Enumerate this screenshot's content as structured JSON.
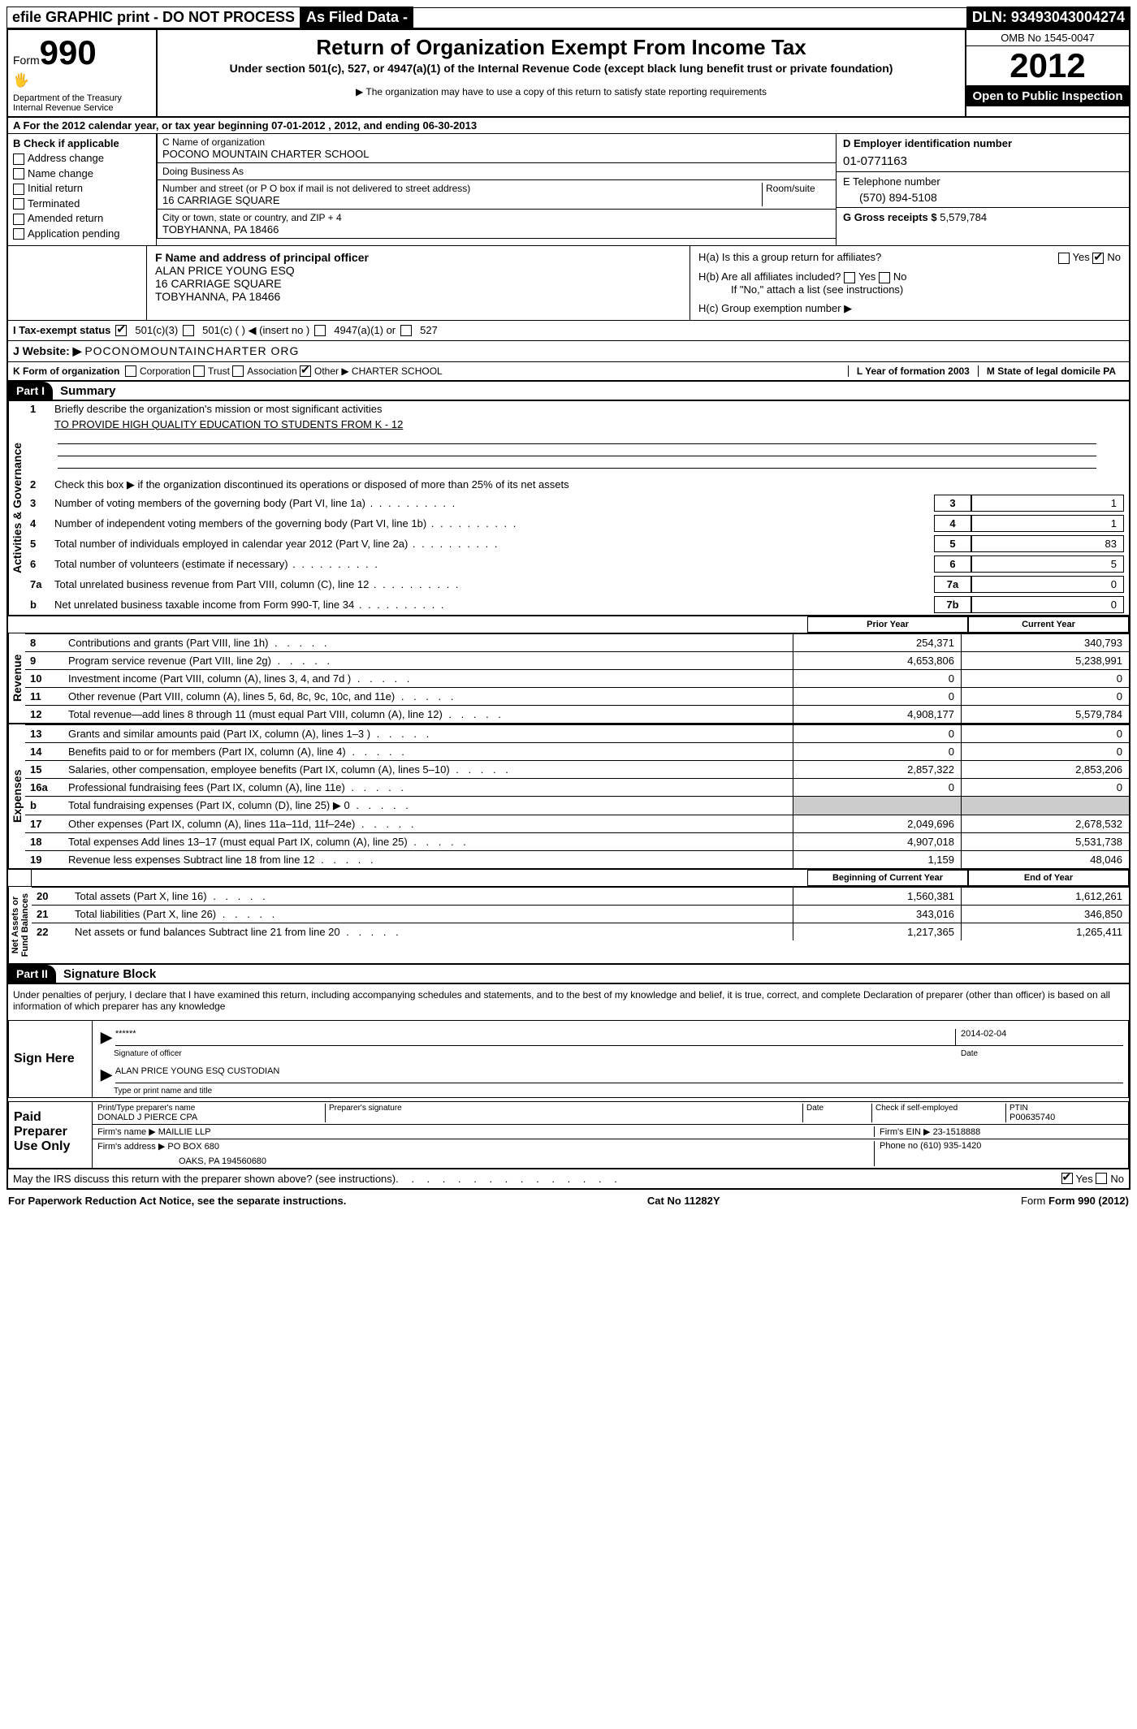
{
  "top": {
    "efile": "efile GRAPHIC print - DO NOT PROCESS",
    "asfiled": "As Filed Data -",
    "dln_label": "DLN:",
    "dln": "93493043004274"
  },
  "header": {
    "form_label": "Form",
    "form_num": "990",
    "dept": "Department of the Treasury\nInternal Revenue Service",
    "title": "Return of Organization Exempt From Income Tax",
    "subtitle": "Under section 501(c), 527, or 4947(a)(1) of the Internal Revenue Code (except black lung benefit trust or private foundation)",
    "note": "▶ The organization may have to use a copy of this return to satisfy state reporting requirements",
    "omb": "OMB No 1545-0047",
    "year": "2012",
    "inspection": "Open to Public Inspection"
  },
  "section_a": "A  For the 2012 calendar year, or tax year beginning 07-01-2012     , 2012, and ending 06-30-2013",
  "box_b": {
    "label": "B Check if applicable",
    "items": [
      "Address change",
      "Name change",
      "Initial return",
      "Terminated",
      "Amended return",
      "Application pending"
    ]
  },
  "box_c": {
    "name_label": "C Name of organization",
    "name": "POCONO MOUNTAIN CHARTER SCHOOL",
    "dba_label": "Doing Business As",
    "dba": "",
    "street_label": "Number and street (or P O  box if mail is not delivered to street address)",
    "room_label": "Room/suite",
    "street": "16 CARRIAGE SQUARE",
    "city_label": "City or town, state or country, and ZIP + 4",
    "city": "TOBYHANNA, PA  18466"
  },
  "box_d": {
    "ein_label": "D Employer identification number",
    "ein": "01-0771163",
    "phone_label": "E Telephone number",
    "phone": "(570) 894-5108",
    "gross_label": "G Gross receipts $",
    "gross": "5,579,784"
  },
  "box_f": {
    "label": "F  Name and address of principal officer",
    "name": "ALAN PRICE YOUNG ESQ",
    "addr1": "16 CARRIAGE SQUARE",
    "addr2": "TOBYHANNA, PA  18466"
  },
  "box_h": {
    "a": "H(a)  Is this a group return for affiliates?",
    "b": "H(b)  Are all affiliates included?",
    "b_note": "If \"No,\" attach a list  (see instructions)",
    "c": "H(c)   Group exemption number ▶",
    "yes": "Yes",
    "no": "No"
  },
  "tax_status": {
    "label": "I   Tax-exempt status",
    "opts": [
      "501(c)(3)",
      "501(c) (  ) ◀ (insert no )",
      "4947(a)(1) or",
      "527"
    ]
  },
  "website": {
    "label": "J  Website: ▶",
    "value": "POCONOMOUNTAINCHARTER ORG"
  },
  "form_org": {
    "label": "K Form of organization",
    "opts": [
      "Corporation",
      "Trust",
      "Association",
      "Other ▶"
    ],
    "other": "CHARTER SCHOOL",
    "l": "L Year of formation  2003",
    "m": "M State of legal domicile  PA"
  },
  "part1": {
    "header": "Part I",
    "title": "Summary",
    "sec1_label": "Activities & Governance",
    "line1": "Briefly describe the organization's mission or most significant activities",
    "mission": "TO PROVIDE HIGH QUALITY EDUCATION TO STUDENTS FROM K - 12",
    "line2": "Check this box ▶       if the organization discontinued its operations or disposed of more than 25% of its net assets",
    "lines_ag": [
      {
        "n": "3",
        "d": "Number of voting members of the governing body (Part VI, line 1a)",
        "box": "3",
        "v": "1"
      },
      {
        "n": "4",
        "d": "Number of independent voting members of the governing body (Part VI, line 1b)",
        "box": "4",
        "v": "1"
      },
      {
        "n": "5",
        "d": "Total number of individuals employed in calendar year 2012 (Part V, line 2a)",
        "box": "5",
        "v": "83"
      },
      {
        "n": "6",
        "d": "Total number of volunteers (estimate if necessary)",
        "box": "6",
        "v": "5"
      },
      {
        "n": "7a",
        "d": "Total unrelated business revenue from Part VIII, column (C), line 12",
        "box": "7a",
        "v": "0"
      },
      {
        "n": "b",
        "d": "Net unrelated business taxable income from Form 990-T, line 34",
        "box": "7b",
        "v": "0"
      }
    ],
    "col_headers": {
      "prior": "Prior Year",
      "current": "Current Year"
    },
    "revenue_label": "Revenue",
    "revenue": [
      {
        "n": "8",
        "d": "Contributions and grants (Part VIII, line 1h)",
        "p": "254,371",
        "c": "340,793"
      },
      {
        "n": "9",
        "d": "Program service revenue (Part VIII, line 2g)",
        "p": "4,653,806",
        "c": "5,238,991"
      },
      {
        "n": "10",
        "d": "Investment income (Part VIII, column (A), lines 3, 4, and 7d )",
        "p": "0",
        "c": "0"
      },
      {
        "n": "11",
        "d": "Other revenue (Part VIII, column (A), lines 5, 6d, 8c, 9c, 10c, and 11e)",
        "p": "0",
        "c": "0"
      },
      {
        "n": "12",
        "d": "Total revenue—add lines 8 through 11 (must equal Part VIII, column (A), line 12)",
        "p": "4,908,177",
        "c": "5,579,784"
      }
    ],
    "expenses_label": "Expenses",
    "expenses": [
      {
        "n": "13",
        "d": "Grants and similar amounts paid (Part IX, column (A), lines 1–3 )",
        "p": "0",
        "c": "0"
      },
      {
        "n": "14",
        "d": "Benefits paid to or for members (Part IX, column (A), line 4)",
        "p": "0",
        "c": "0"
      },
      {
        "n": "15",
        "d": "Salaries, other compensation, employee benefits (Part IX, column (A), lines 5–10)",
        "p": "2,857,322",
        "c": "2,853,206"
      },
      {
        "n": "16a",
        "d": "Professional fundraising fees (Part IX, column (A), line 11e)",
        "p": "0",
        "c": "0"
      },
      {
        "n": "b",
        "d": "Total fundraising expenses (Part IX, column (D), line 25) ▶ 0",
        "p": "",
        "c": ""
      },
      {
        "n": "17",
        "d": "Other expenses (Part IX, column (A), lines 11a–11d, 11f–24e)",
        "p": "2,049,696",
        "c": "2,678,532"
      },
      {
        "n": "18",
        "d": "Total expenses  Add lines 13–17 (must equal Part IX, column (A), line 25)",
        "p": "4,907,018",
        "c": "5,531,738"
      },
      {
        "n": "19",
        "d": "Revenue less expenses  Subtract line 18 from line 12",
        "p": "1,159",
        "c": "48,046"
      }
    ],
    "netassets_label": "Net Assets or\nFund Balances",
    "na_headers": {
      "begin": "Beginning of Current Year",
      "end": "End of Year"
    },
    "netassets": [
      {
        "n": "20",
        "d": "Total assets (Part X, line 16)",
        "p": "1,560,381",
        "c": "1,612,261"
      },
      {
        "n": "21",
        "d": "Total liabilities (Part X, line 26)",
        "p": "343,016",
        "c": "346,850"
      },
      {
        "n": "22",
        "d": "Net assets or fund balances  Subtract line 21 from line 20",
        "p": "1,217,365",
        "c": "1,265,411"
      }
    ]
  },
  "part2": {
    "header": "Part II",
    "title": "Signature Block",
    "perjury": "Under penalties of perjury, I declare that I have examined this return, including accompanying schedules and statements, and to the best of my knowledge and belief, it is true, correct, and complete  Declaration of preparer (other than officer) is based on all information of which preparer has any knowledge",
    "sign_here": "Sign Here",
    "sig": "******",
    "sig_label": "Signature of officer",
    "date": "2014-02-04",
    "date_label": "Date",
    "name": "ALAN PRICE YOUNG ESQ CUSTODIAN",
    "name_label": "Type or print name and title",
    "paid": "Paid Preparer Use Only",
    "prep_name_label": "Print/Type preparer's name",
    "prep_name": "DONALD J PIERCE CPA",
    "prep_sig_label": "Preparer's signature",
    "prep_date_label": "Date",
    "self_emp": "Check        if self-employed",
    "ptin_label": "PTIN",
    "ptin": "P00635740",
    "firm_name_label": "Firm's name   ▶",
    "firm_name": "MAILLIE LLP",
    "firm_ein_label": "Firm's EIN ▶",
    "firm_ein": "23-1518888",
    "firm_addr_label": "Firm's address ▶",
    "firm_addr": "PO BOX 680",
    "firm_city": "OAKS, PA  194560680",
    "firm_phone_label": "Phone no",
    "firm_phone": "(610) 935-1420",
    "discuss": "May the IRS discuss this return with the preparer shown above? (see instructions)"
  },
  "footer": {
    "left": "For Paperwork Reduction Act Notice, see the separate instructions.",
    "center": "Cat No 11282Y",
    "right": "Form 990 (2012)"
  }
}
